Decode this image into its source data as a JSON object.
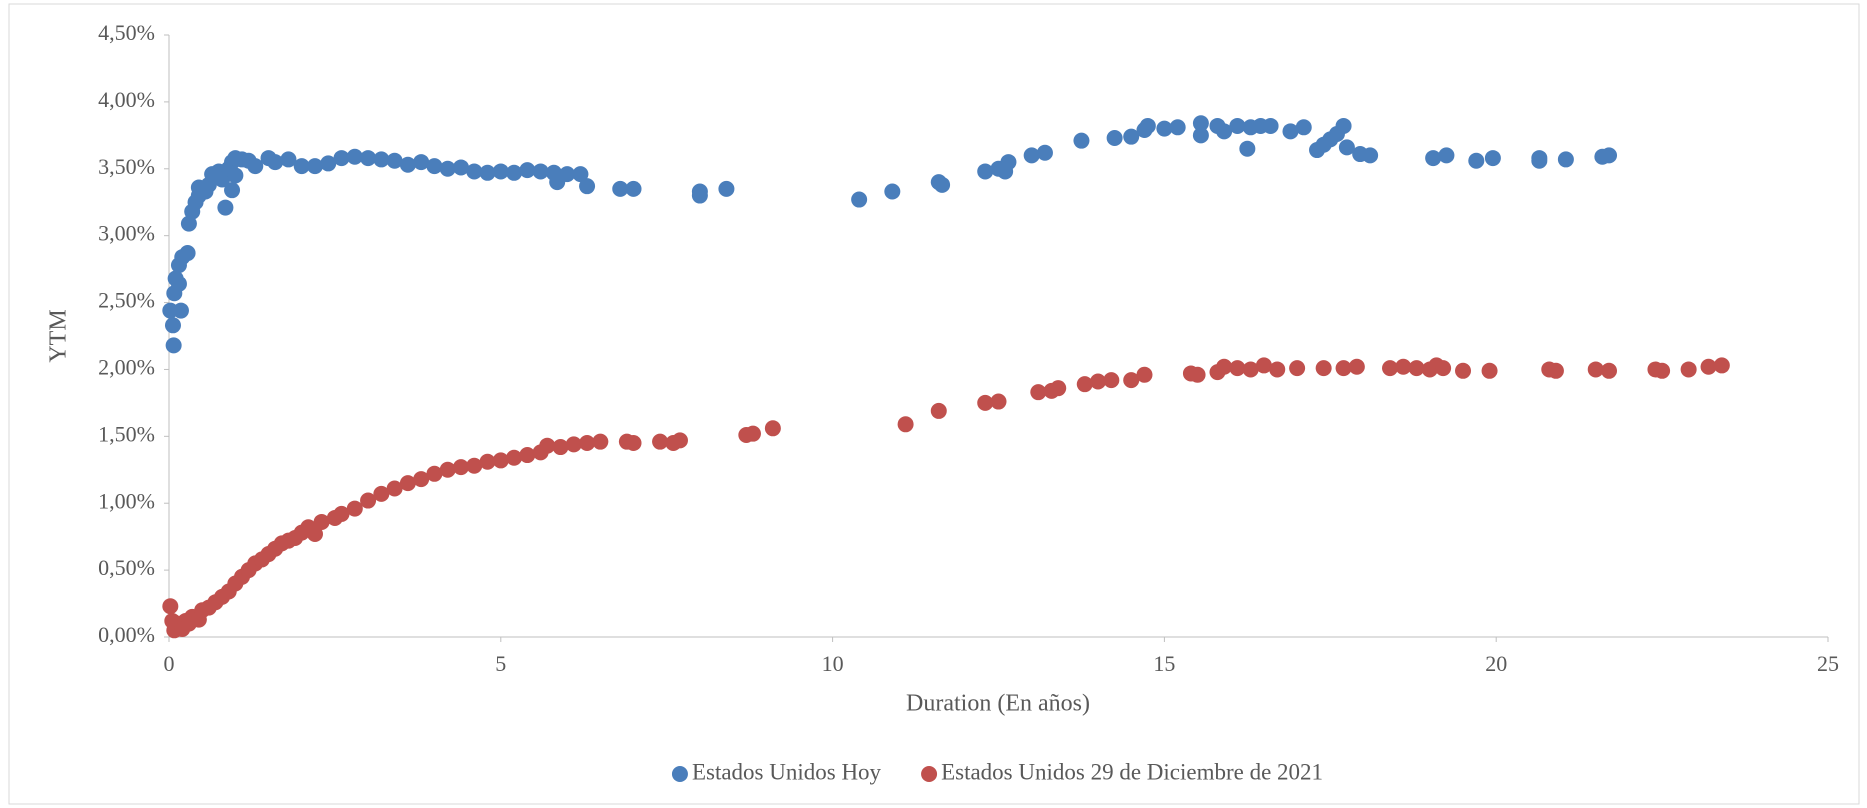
{
  "chart_data": {
    "type": "scatter",
    "x_label": "Duration (En años)",
    "y_label": "YTM",
    "xlim": [
      0,
      25
    ],
    "xticks": [
      0,
      5,
      10,
      15,
      20,
      25
    ],
    "ylim": [
      0,
      4.5
    ],
    "yticks": [
      {
        "value": 0,
        "label": "0,00%"
      },
      {
        "value": 0.5,
        "label": "0,50%"
      },
      {
        "value": 1,
        "label": "1,00%"
      },
      {
        "value": 1.5,
        "label": "1,50%"
      },
      {
        "value": 2,
        "label": "2,00%"
      },
      {
        "value": 2.5,
        "label": "2,50%"
      },
      {
        "value": 3,
        "label": "3,00%"
      },
      {
        "value": 3.5,
        "label": "3,50%"
      },
      {
        "value": 4,
        "label": "4,00%"
      },
      {
        "value": 4.5,
        "label": "4,50%"
      }
    ],
    "grid": false,
    "legend": "bottom",
    "series": [
      {
        "name": "Estados Unidos Hoy",
        "color": "#4a7ebb",
        "x": [
          0.02,
          0.06,
          0.07,
          0.08,
          0.1,
          0.15,
          0.15,
          0.18,
          0.2,
          0.28,
          0.3,
          0.35,
          0.4,
          0.45,
          0.45,
          0.55,
          0.6,
          0.65,
          0.75,
          0.8,
          0.85,
          0.9,
          0.95,
          0.95,
          1.0,
          1.0,
          1.1,
          1.2,
          1.3,
          1.5,
          1.6,
          1.8,
          2.0,
          2.2,
          2.4,
          2.6,
          2.8,
          3.0,
          3.2,
          3.4,
          3.6,
          3.8,
          4.0,
          4.2,
          4.4,
          4.6,
          4.8,
          5.0,
          5.2,
          5.4,
          5.6,
          5.8,
          5.85,
          6.0,
          6.2,
          6.3,
          6.8,
          7.0,
          8.0,
          8.0,
          8.4,
          10.4,
          10.9,
          11.6,
          11.65,
          12.3,
          12.5,
          12.6,
          12.65,
          13.0,
          13.2,
          13.75,
          14.25,
          14.5,
          14.7,
          14.75,
          15.0,
          15.2,
          15.55,
          15.55,
          15.8,
          15.9,
          16.1,
          16.25,
          16.3,
          16.45,
          16.6,
          16.9,
          17.1,
          17.3,
          17.4,
          17.5,
          17.6,
          17.7,
          17.75,
          17.95,
          18.1,
          19.05,
          19.25,
          19.7,
          19.95,
          20.65,
          20.65,
          21.05,
          21.6,
          21.7
        ],
        "values": [
          2.44,
          2.33,
          2.18,
          2.57,
          2.68,
          2.64,
          2.78,
          2.44,
          2.84,
          2.87,
          3.09,
          3.18,
          3.25,
          3.3,
          3.36,
          3.33,
          3.38,
          3.46,
          3.48,
          3.42,
          3.21,
          3.5,
          3.55,
          3.34,
          3.58,
          3.45,
          3.57,
          3.56,
          3.52,
          3.58,
          3.55,
          3.57,
          3.52,
          3.52,
          3.54,
          3.58,
          3.59,
          3.58,
          3.57,
          3.56,
          3.53,
          3.55,
          3.52,
          3.5,
          3.51,
          3.48,
          3.47,
          3.48,
          3.47,
          3.49,
          3.48,
          3.47,
          3.4,
          3.46,
          3.46,
          3.37,
          3.35,
          3.35,
          3.33,
          3.3,
          3.35,
          3.27,
          3.33,
          3.4,
          3.38,
          3.48,
          3.5,
          3.48,
          3.55,
          3.6,
          3.62,
          3.71,
          3.73,
          3.74,
          3.79,
          3.82,
          3.8,
          3.81,
          3.84,
          3.75,
          3.82,
          3.78,
          3.82,
          3.65,
          3.81,
          3.82,
          3.82,
          3.78,
          3.81,
          3.64,
          3.68,
          3.72,
          3.76,
          3.82,
          3.66,
          3.61,
          3.6,
          3.58,
          3.6,
          3.56,
          3.58,
          3.56,
          3.58,
          3.57,
          3.59,
          3.6
        ]
      },
      {
        "name": "Estados Unidos 29 de Diciembre de 2021",
        "color": "#c0504d",
        "x": [
          0.02,
          0.05,
          0.08,
          0.12,
          0.15,
          0.2,
          0.25,
          0.3,
          0.35,
          0.45,
          0.5,
          0.6,
          0.7,
          0.8,
          0.9,
          1.0,
          1.1,
          1.2,
          1.3,
          1.4,
          1.5,
          1.6,
          1.7,
          1.8,
          1.9,
          2.0,
          2.1,
          2.2,
          2.3,
          2.5,
          2.6,
          2.8,
          3.0,
          3.2,
          3.4,
          3.6,
          3.8,
          4.0,
          4.2,
          4.4,
          4.6,
          4.8,
          5.0,
          5.2,
          5.4,
          5.6,
          5.7,
          5.9,
          6.1,
          6.3,
          6.5,
          6.9,
          7.0,
          7.4,
          7.6,
          7.7,
          8.7,
          8.8,
          9.1,
          11.1,
          11.6,
          12.3,
          12.5,
          13.1,
          13.3,
          13.4,
          13.8,
          14.0,
          14.2,
          14.5,
          14.7,
          15.4,
          15.5,
          15.8,
          15.9,
          16.1,
          16.3,
          16.5,
          16.7,
          17.0,
          17.4,
          17.7,
          17.9,
          18.4,
          18.6,
          18.8,
          19.0,
          19.1,
          19.2,
          19.5,
          19.9,
          20.8,
          20.9,
          21.5,
          21.7,
          22.4,
          22.5,
          22.9,
          23.2,
          23.4
        ],
        "values": [
          0.23,
          0.12,
          0.05,
          0.1,
          0.08,
          0.06,
          0.12,
          0.1,
          0.15,
          0.13,
          0.2,
          0.22,
          0.26,
          0.3,
          0.34,
          0.4,
          0.45,
          0.5,
          0.55,
          0.58,
          0.62,
          0.66,
          0.7,
          0.72,
          0.74,
          0.78,
          0.82,
          0.77,
          0.86,
          0.89,
          0.92,
          0.96,
          1.02,
          1.07,
          1.11,
          1.15,
          1.18,
          1.22,
          1.25,
          1.27,
          1.28,
          1.31,
          1.32,
          1.34,
          1.36,
          1.38,
          1.43,
          1.42,
          1.44,
          1.45,
          1.46,
          1.46,
          1.45,
          1.46,
          1.45,
          1.47,
          1.51,
          1.52,
          1.56,
          1.59,
          1.69,
          1.75,
          1.76,
          1.83,
          1.84,
          1.86,
          1.89,
          1.91,
          1.92,
          1.92,
          1.96,
          1.97,
          1.96,
          1.98,
          2.02,
          2.01,
          2.0,
          2.03,
          2.0,
          2.01,
          2.01,
          2.01,
          2.02,
          2.01,
          2.02,
          2.01,
          2.0,
          2.03,
          2.01,
          1.99,
          1.99,
          2.0,
          1.99,
          2.0,
          1.99,
          2.0,
          1.99,
          2.0,
          2.02,
          2.03
        ]
      }
    ]
  }
}
